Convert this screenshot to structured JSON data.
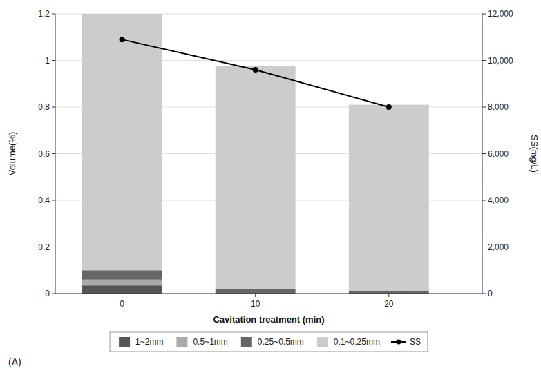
{
  "chart_data": {
    "type": "bar",
    "stacked": true,
    "x": [
      0,
      10,
      20
    ],
    "xlabel": "Cavitation treatment (min)",
    "ylabel": "Volume(%)",
    "y2label": "SS(mg/L)",
    "xlim": [
      -5,
      27
    ],
    "xticks": [
      0,
      10,
      20
    ],
    "ylim": [
      0,
      1.2
    ],
    "yticks": [
      0,
      0.2,
      0.4,
      0.6,
      0.8,
      1,
      1.2
    ],
    "y2lim": [
      0,
      12000
    ],
    "y2ticks": [
      0,
      {
        "value": 2000,
        "label": "2,000"
      },
      {
        "value": 4000,
        "label": "4,000"
      },
      {
        "value": 6000,
        "label": "6,000"
      },
      {
        "value": 8000,
        "label": "8,000"
      },
      {
        "value": 10000,
        "label": "10,000"
      },
      {
        "value": 12000,
        "label": "12,000"
      }
    ],
    "series": [
      {
        "name": "1~2mm",
        "type": "bar",
        "color": "#555555",
        "values": [
          0.035,
          0.0,
          0.0
        ]
      },
      {
        "name": "0.5~1mm",
        "type": "bar",
        "color": "#aaaaaa",
        "values": [
          0.025,
          0.0,
          0.0
        ]
      },
      {
        "name": "0.25~0.5mm",
        "type": "bar",
        "color": "#666666",
        "values": [
          0.04,
          0.018,
          0.013
        ]
      },
      {
        "name": "0.1~0.25mm",
        "type": "bar",
        "color": "#cccccc",
        "values": [
          1.1,
          0.957,
          0.797
        ]
      },
      {
        "name": "SS",
        "type": "line",
        "axis": "y2",
        "color": "#000000",
        "marker": "circle",
        "line_style": "solid",
        "values": [
          10900,
          9600,
          8000
        ]
      }
    ],
    "annotations": [
      "(A)"
    ],
    "grid": true,
    "legend": "bottom"
  }
}
